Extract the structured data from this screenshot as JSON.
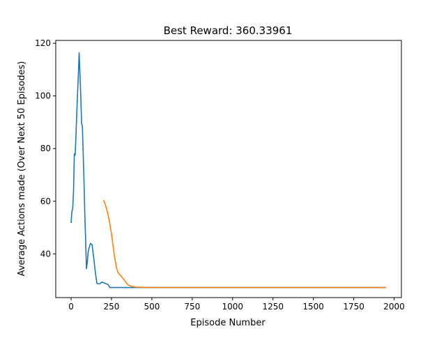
{
  "chart_data": {
    "type": "line",
    "title": "Best Reward:  360.33961",
    "xlabel": "Episode Number",
    "ylabel": "Average Actions made (Over Next 50 Episodes)",
    "xlim": [
      -95,
      2045
    ],
    "ylim": [
      23.4,
      121.1
    ],
    "xticks": [
      0,
      250,
      500,
      750,
      1000,
      1250,
      1500,
      1750,
      2000
    ],
    "yticks": [
      40,
      60,
      80,
      100,
      120
    ],
    "grid": false,
    "legend": "none",
    "series": [
      {
        "color": "#1f77b4",
        "x": [
          0,
          5,
          10,
          15,
          20,
          25,
          30,
          35,
          40,
          45,
          50,
          55,
          60,
          65,
          70,
          75,
          80,
          85,
          90,
          95,
          100,
          105,
          110,
          120,
          130,
          140,
          150,
          160,
          170,
          180,
          190,
          200,
          210,
          220,
          230,
          240,
          250,
          260,
          270,
          300,
          400,
          500,
          1000,
          1500,
          1950
        ],
        "y": [
          51.7,
          56.2,
          57.0,
          63.7,
          78.0,
          77.5,
          85.0,
          93.0,
          101.0,
          108.0,
          116.4,
          108.0,
          100.0,
          89.5,
          88.5,
          78.0,
          67.0,
          55.0,
          45.0,
          34.4,
          36.5,
          40.5,
          42.0,
          44.0,
          43.5,
          38.5,
          33.0,
          28.8,
          28.6,
          28.7,
          29.3,
          29.1,
          28.8,
          28.6,
          28.3,
          27.2,
          27.2,
          27.2,
          27.2,
          27.2,
          27.2,
          27.2,
          27.2,
          27.2,
          27.2
        ]
      },
      {
        "color": "#ff7f0e",
        "x": [
          200,
          210,
          220,
          230,
          240,
          250,
          260,
          270,
          280,
          290,
          300,
          310,
          320,
          330,
          340,
          350,
          360,
          370,
          380,
          390,
          400,
          450,
          500,
          1000,
          1500,
          1950
        ],
        "y": [
          60.5,
          59.0,
          57.0,
          54.5,
          51.5,
          47.5,
          43.0,
          38.5,
          35.0,
          33.0,
          32.2,
          31.5,
          30.8,
          30.0,
          29.2,
          28.4,
          28.0,
          27.8,
          27.6,
          27.5,
          27.4,
          27.3,
          27.2,
          27.2,
          27.2,
          27.2
        ]
      }
    ]
  }
}
